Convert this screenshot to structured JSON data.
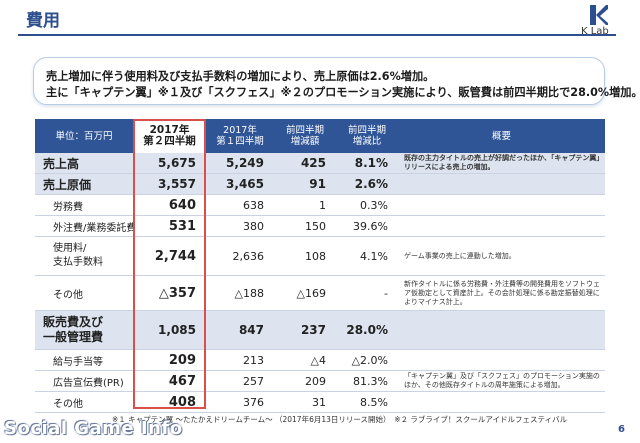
{
  "header": {
    "title": "費用",
    "logo_text": "K Lab"
  },
  "summary": {
    "line1": "売上増加に伴う使用料及び支払手数料の増加により、売上原価は2.6%増加。",
    "line2": "主に「キャプテン翼」※１及び「スクフェス」※２のプロモーション実施により、販管費は前四半期比で28.0%増加。"
  },
  "table": {
    "headers": {
      "unit": "単位：百万円",
      "current": [
        "2017年",
        "第２四半期"
      ],
      "previous": [
        "2017年",
        "第１四半期"
      ],
      "diff": [
        "前四半期",
        "増減額"
      ],
      "ratio": [
        "前四半期",
        "増減比"
      ],
      "note": "概要"
    },
    "rows": [
      {
        "label": "売上高",
        "current": "5,675",
        "previous": "5,249",
        "diff": "425",
        "ratio": "8.1%",
        "note": "既存の主力タイトルの売上が好調だったほか、「キャプテン翼」リリースによる売上の増加。"
      },
      {
        "label": "売上原価",
        "current": "3,557",
        "previous": "3,465",
        "diff": "91",
        "ratio": "2.6%",
        "note": ""
      },
      {
        "label": "労務費",
        "current": "640",
        "previous": "638",
        "diff": "1",
        "ratio": "0.3%",
        "note": ""
      },
      {
        "label": "外注費/業務委託費",
        "current": "531",
        "previous": "380",
        "diff": "150",
        "ratio": "39.6%",
        "note": ""
      },
      {
        "label": "使用料/\n支払手数料",
        "current": "2,744",
        "previous": "2,636",
        "diff": "108",
        "ratio": "4.1%",
        "note": "ゲーム事業の売上に連動した増加。"
      },
      {
        "label": "その他",
        "current": "△357",
        "previous": "△188",
        "diff": "△169",
        "ratio": "-",
        "note": "新作タイトルに係る労務費・外注費等の開発費用をソフトウェア仮勘定として資産計上。その会計処理に係る勘定振替処理によりマイナス計上。"
      },
      {
        "label": "販売費及び\n一般管理費",
        "current": "1,085",
        "previous": "847",
        "diff": "237",
        "ratio": "28.0%",
        "note": ""
      },
      {
        "label": "給与手当等",
        "current": "209",
        "previous": "213",
        "diff": "△4",
        "ratio": "△2.0%",
        "note": ""
      },
      {
        "label": "広告宣伝費(PR)",
        "current": "467",
        "previous": "257",
        "diff": "209",
        "ratio": "81.3%",
        "note": "「キャプテン翼」及び「スクフェス」のプロモーション実施のほか、その他既存タイトルの周年施策による増加。"
      },
      {
        "label": "その他",
        "current": "408",
        "previous": "376",
        "diff": "31",
        "ratio": "8.5%",
        "note": ""
      }
    ]
  },
  "footnote": "※１ キャプテン翼 〜たたかえドリームチーム〜 （2017年6月13日リリース開始）　※２ ラブライブ！スクールアイドルフェスティバル",
  "page_number": "6",
  "watermark": "Social Game Info",
  "colors": {
    "accent": "#2f5597",
    "highlight_border": "#d9504a",
    "major_row_bg": "#dde4f0"
  }
}
